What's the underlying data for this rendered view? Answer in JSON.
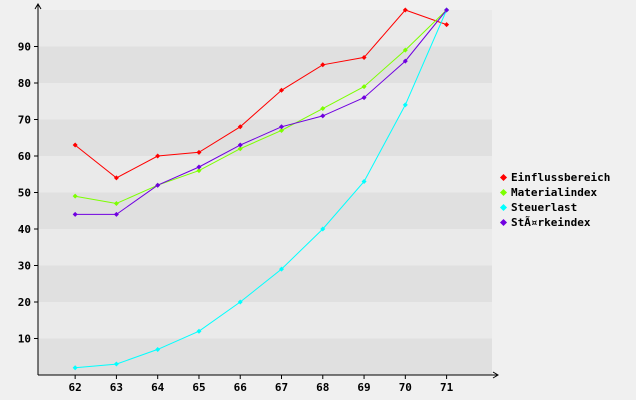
{
  "chart_data": {
    "type": "line",
    "title": "",
    "xlabel": "",
    "ylabel": "",
    "x": [
      62,
      63,
      64,
      65,
      66,
      67,
      68,
      69,
      70,
      71
    ],
    "xlim": [
      61.1,
      72.1
    ],
    "ylim": [
      0,
      100
    ],
    "y_ticks": [
      10,
      20,
      30,
      40,
      50,
      60,
      70,
      80,
      90
    ],
    "grid": "alternating horizontal bands",
    "legend_position": "right",
    "series": [
      {
        "name": "Einflussbereich",
        "color": "#ff0000",
        "values": [
          63,
          54,
          60,
          61,
          68,
          78,
          85,
          87,
          100,
          96
        ]
      },
      {
        "name": "Materialindex",
        "color": "#7cff00",
        "values": [
          49,
          47,
          52,
          56,
          62,
          67,
          73,
          79,
          89,
          100
        ]
      },
      {
        "name": "Steuerlast",
        "color": "#00ffff",
        "values": [
          2,
          3,
          7,
          12,
          20,
          29,
          40,
          53,
          74,
          100
        ]
      },
      {
        "name": "Stärkeindex",
        "color": "#7000e0",
        "values": [
          44,
          44,
          52,
          57,
          63,
          68,
          71,
          76,
          86,
          100
        ]
      }
    ]
  },
  "legend": {
    "items": [
      {
        "label": "Einflussbereich",
        "color": "#ff0000"
      },
      {
        "label": "Materialindex",
        "color": "#7cff00"
      },
      {
        "label": "Steuerlast",
        "color": "#00ffff"
      },
      {
        "label": "StÃ¤rkeindex",
        "color": "#7000e0"
      }
    ]
  }
}
